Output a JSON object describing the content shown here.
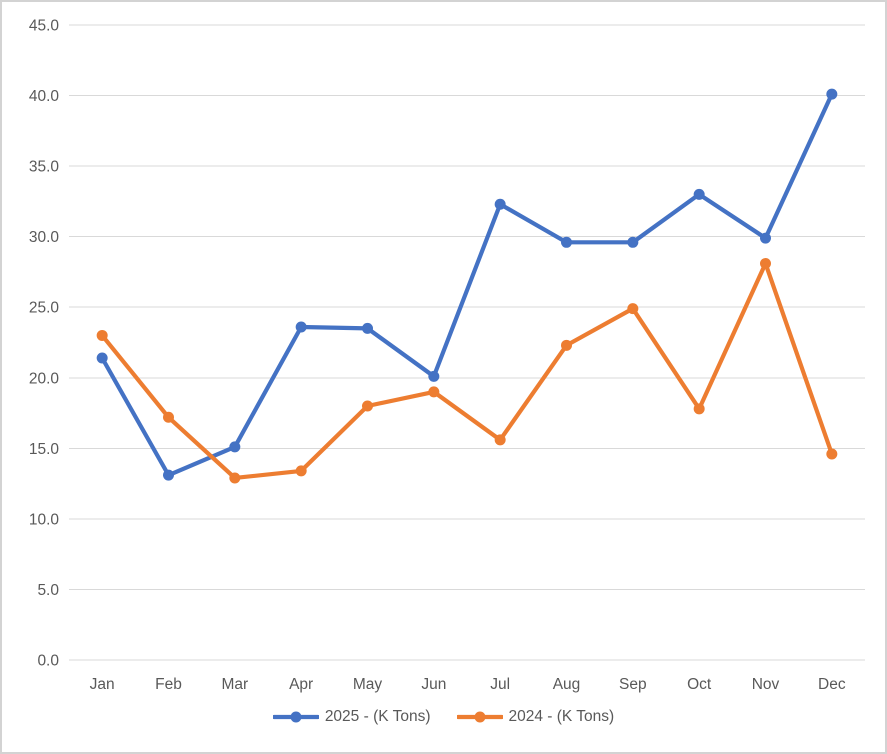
{
  "chart_data": {
    "type": "line",
    "title": "",
    "xlabel": "",
    "ylabel": "",
    "categories": [
      "Jan",
      "Feb",
      "Mar",
      "Apr",
      "May",
      "Jun",
      "Jul",
      "Aug",
      "Sep",
      "Oct",
      "Nov",
      "Dec"
    ],
    "series": [
      {
        "name": "2025 - (K Tons)",
        "color": "#4472C4",
        "values": [
          21.4,
          13.1,
          15.1,
          23.6,
          23.5,
          20.1,
          32.3,
          29.6,
          29.6,
          33.0,
          29.9,
          40.1
        ]
      },
      {
        "name": "2024 - (K Tons)",
        "color": "#ED7D31",
        "values": [
          23.0,
          17.2,
          12.9,
          13.4,
          18.0,
          19.0,
          15.6,
          22.3,
          24.9,
          17.8,
          28.1,
          14.6
        ]
      }
    ],
    "ylim": [
      0,
      45
    ],
    "ytick_values": [
      0,
      5,
      10,
      15,
      20,
      25,
      30,
      35,
      40,
      45
    ],
    "ytick_labels": [
      "0.0",
      "5.0",
      "10.0",
      "15.0",
      "20.0",
      "25.0",
      "30.0",
      "35.0",
      "40.0",
      "45.0"
    ],
    "grid": true,
    "legend_position": "bottom"
  },
  "styles": {
    "background": "#FFFFFF",
    "frame_border_color": "#D3D3D3",
    "grid_color": "#D9D9D9",
    "axis_text_color": "#595959"
  }
}
